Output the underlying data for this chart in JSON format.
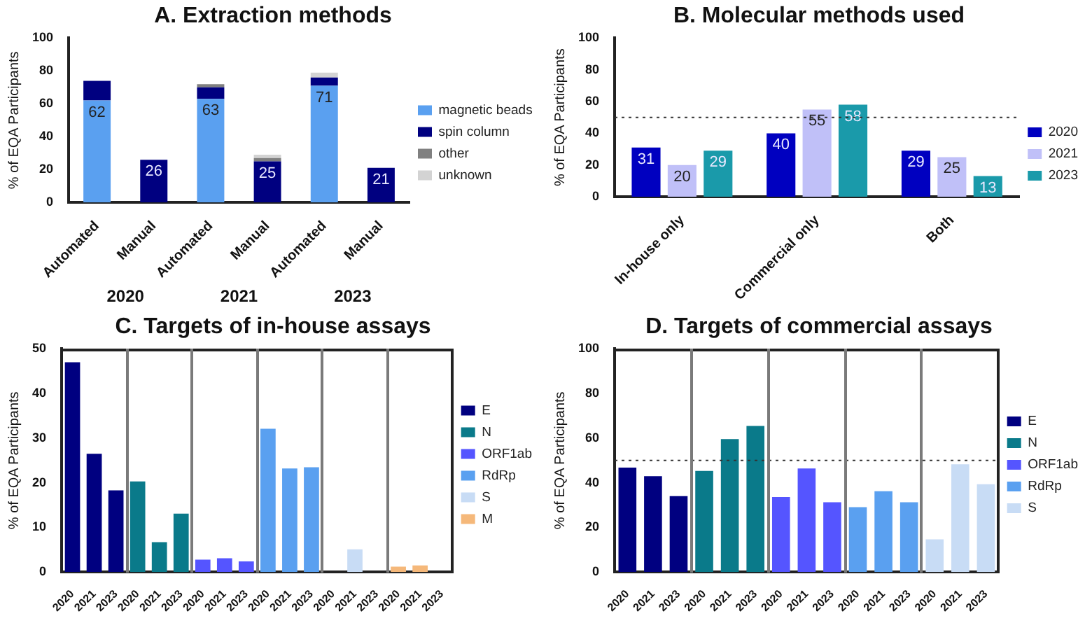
{
  "chart_data": [
    {
      "type": "bar",
      "title": "A. Extraction methods",
      "ylabel": "% of EQA Participants",
      "categories": [
        "Automated",
        "Manual",
        "Automated",
        "Manual",
        "Automated",
        "Manual"
      ],
      "stacked": true,
      "ylim": [
        0,
        100
      ],
      "yticks": [
        0,
        20,
        40,
        60,
        80,
        100
      ],
      "grid": false,
      "legend": "right",
      "annotations": [
        "2020",
        "2021",
        "2023"
      ],
      "series": [
        {
          "name": "magnetic beads",
          "color": "#5aa0f0",
          "values": [
            62,
            null,
            63,
            null,
            71,
            null
          ],
          "value_labels": [
            "62",
            null,
            "63",
            null,
            "71",
            null
          ]
        },
        {
          "name": "spin column",
          "color": "#000080",
          "values": [
            12,
            26,
            7,
            25,
            5,
            21
          ],
          "value_labels": [
            null,
            "26",
            null,
            "25",
            null,
            "21"
          ]
        },
        {
          "name": "other",
          "color": "#808080",
          "values": [
            null,
            null,
            2,
            2,
            null,
            null
          ]
        },
        {
          "name": "unknown",
          "color": "#d3d3d3",
          "values": [
            null,
            null,
            null,
            2,
            3,
            null
          ]
        }
      ]
    },
    {
      "type": "bar",
      "title": "B. Molecular methods used",
      "ylabel": "% of EQA Participants",
      "categories": [
        "In-house only",
        "Commercial only",
        "Both"
      ],
      "ylim": [
        0,
        100
      ],
      "yticks": [
        0,
        20,
        40,
        60,
        80,
        100
      ],
      "grid": false,
      "legend": "right",
      "data_labels": true,
      "ref_lines": [
        {
          "axis": "y",
          "value": 50,
          "line_style": "dotted"
        }
      ],
      "series": [
        {
          "name": "2020",
          "color": "#0000c0",
          "values": [
            31,
            40,
            29
          ]
        },
        {
          "name": "2021",
          "color": "#c0c0f8",
          "values": [
            20,
            55,
            25
          ]
        },
        {
          "name": "2023",
          "color": "#1a9aaa",
          "values": [
            29,
            58,
            13
          ]
        }
      ]
    },
    {
      "type": "bar",
      "title": "C. Targets of in-house assays",
      "ylabel": "% of EQA Participants",
      "categories": [
        "2020",
        "2021",
        "2023",
        "2020",
        "2021",
        "2023",
        "2020",
        "2021",
        "2023",
        "2020",
        "2021",
        "2023",
        "2020",
        "2021",
        "2023",
        "2020",
        "2021",
        "2023"
      ],
      "ylim": [
        0,
        50
      ],
      "yticks": [
        0,
        10,
        20,
        30,
        40,
        50
      ],
      "grid": false,
      "legend": "right",
      "series": [
        {
          "name": "E",
          "color": "#000080",
          "values": [
            47,
            26.5,
            18.3,
            null,
            null,
            null,
            null,
            null,
            null,
            null,
            null,
            null,
            null,
            null,
            null,
            null,
            null,
            null
          ]
        },
        {
          "name": "N",
          "color": "#0a7a8a",
          "values": [
            null,
            null,
            null,
            20.3,
            6.7,
            13.1,
            null,
            null,
            null,
            null,
            null,
            null,
            null,
            null,
            null,
            null,
            null,
            null
          ]
        },
        {
          "name": "ORF1ab",
          "color": "#5555ff",
          "values": [
            null,
            null,
            null,
            null,
            null,
            null,
            2.8,
            3.1,
            2.4,
            null,
            null,
            null,
            null,
            null,
            null,
            null,
            null,
            null
          ]
        },
        {
          "name": "RdRp",
          "color": "#5aa0f0",
          "values": [
            null,
            null,
            null,
            null,
            null,
            null,
            null,
            null,
            null,
            32.1,
            23.2,
            23.5,
            null,
            null,
            null,
            null,
            null,
            null
          ]
        },
        {
          "name": "S",
          "color": "#c8dcf5",
          "values": [
            null,
            null,
            null,
            null,
            null,
            null,
            null,
            null,
            null,
            null,
            null,
            null,
            null,
            5.1,
            null,
            null,
            null,
            null
          ]
        },
        {
          "name": "M",
          "color": "#f5b87a",
          "values": [
            null,
            null,
            null,
            null,
            null,
            null,
            null,
            null,
            null,
            null,
            null,
            null,
            null,
            null,
            null,
            1.2,
            1.5,
            null
          ]
        }
      ]
    },
    {
      "type": "bar",
      "title": "D. Targets of commercial assays",
      "ylabel": "% of EQA Participants",
      "categories": [
        "2020",
        "2021",
        "2023",
        "2020",
        "2021",
        "2023",
        "2020",
        "2021",
        "2023",
        "2020",
        "2021",
        "2023",
        "2020",
        "2021",
        "2023"
      ],
      "ylim": [
        0,
        100
      ],
      "yticks": [
        0,
        20,
        40,
        60,
        80,
        100
      ],
      "grid": false,
      "legend": "right",
      "ref_lines": [
        {
          "axis": "y",
          "value": 50,
          "line_style": "dotted"
        }
      ],
      "series": [
        {
          "name": "E",
          "color": "#000080",
          "values": [
            46.8,
            43,
            34,
            null,
            null,
            null,
            null,
            null,
            null,
            null,
            null,
            null,
            null,
            null,
            null
          ]
        },
        {
          "name": "N",
          "color": "#0a7a8a",
          "values": [
            null,
            null,
            null,
            45.3,
            59.6,
            65.5,
            null,
            null,
            null,
            null,
            null,
            null,
            null,
            null,
            null
          ]
        },
        {
          "name": "ORF1ab",
          "color": "#5555ff",
          "values": [
            null,
            null,
            null,
            null,
            null,
            null,
            33.6,
            46.4,
            31.3,
            null,
            null,
            null,
            null,
            null,
            null
          ]
        },
        {
          "name": "RdRp",
          "color": "#5aa0f0",
          "values": [
            null,
            null,
            null,
            null,
            null,
            null,
            null,
            null,
            null,
            29.1,
            36.2,
            31.3,
            null,
            null,
            null
          ]
        },
        {
          "name": "S",
          "color": "#c8dcf5",
          "values": [
            null,
            null,
            null,
            null,
            null,
            null,
            null,
            null,
            null,
            null,
            null,
            null,
            14.7,
            48.3,
            39.4
          ]
        }
      ]
    }
  ]
}
